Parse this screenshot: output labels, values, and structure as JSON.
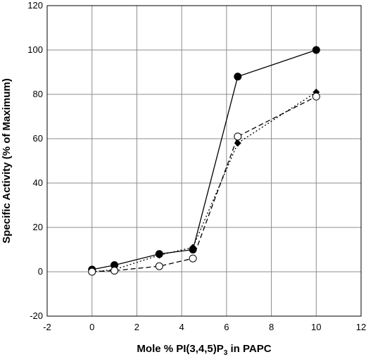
{
  "chart_data": {
    "type": "line",
    "title": "",
    "xlabel": {
      "prefix": "Mole % PI(3,4,5)P",
      "subscript": "3",
      "suffix": " in PAPC"
    },
    "ylabel": "Specific Activity (% of Maximum)",
    "xlim": [
      -2,
      12
    ],
    "ylim": [
      -20,
      120
    ],
    "xticks": [
      -2,
      0,
      2,
      4,
      6,
      8,
      10,
      12
    ],
    "yticks": [
      -20,
      0,
      20,
      40,
      60,
      80,
      100,
      120
    ],
    "grid": true,
    "legend": "none",
    "series": [
      {
        "marker": "filled-circle",
        "line": "solid",
        "color": "#000000",
        "x": [
          0,
          1,
          3,
          4.5,
          6.5,
          10
        ],
        "y": [
          1,
          3,
          8,
          10,
          88,
          100
        ]
      },
      {
        "marker": "filled-diamond",
        "line": "dotted",
        "color": "#000000",
        "x": [
          0,
          1,
          3,
          4.5,
          6.5,
          10
        ],
        "y": [
          0,
          1,
          7.5,
          11,
          58,
          81
        ]
      },
      {
        "marker": "open-circle",
        "line": "dashed",
        "color": "#000000",
        "x": [
          0,
          1,
          3,
          4.5,
          6.5,
          10
        ],
        "y": [
          0,
          0.5,
          2.5,
          6,
          61,
          79
        ]
      }
    ]
  }
}
